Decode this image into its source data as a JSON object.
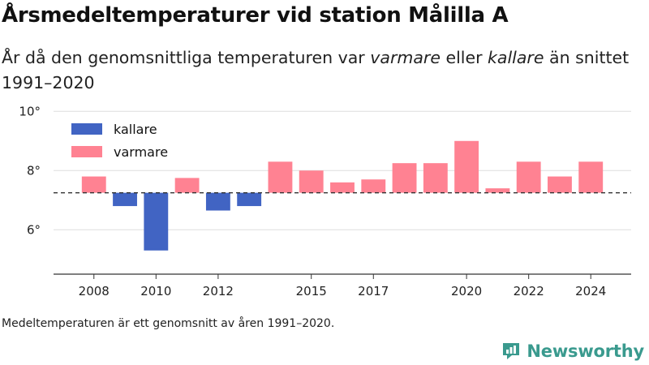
{
  "header": {
    "title": "Årsmedeltemperaturer vid station Målilla A",
    "subtitle_parts": [
      "År då den genomsnittliga temperaturen var ",
      "varmare",
      " eller ",
      "kallare",
      " än snittet 1991–2020"
    ]
  },
  "caption": "Medeltemperaturen är ett genomsnitt av åren 1991–2020.",
  "brand": {
    "name": "Newsworthy",
    "icon": "newsworthy-logo-icon"
  },
  "colors": {
    "colder": "#4164c3",
    "warmer": "#ff8292",
    "baseline": "#333333",
    "grid": "#dddddd",
    "axis": "#333333",
    "brand": "#3a9a8e"
  },
  "chart_data": {
    "type": "bar",
    "baseline": 7.25,
    "ylim": [
      4.5,
      10.2
    ],
    "y_ticks": [
      6,
      8,
      10
    ],
    "y_tick_labels": [
      "6°",
      "8°",
      "10°"
    ],
    "x_range": [
      2006.7,
      2025.3
    ],
    "x_ticks": [
      2008,
      2010,
      2012,
      2015,
      2017,
      2020,
      2022,
      2024
    ],
    "x_tick_labels": [
      "2008",
      "2010",
      "2012",
      "2015",
      "2017",
      "2020",
      "2022",
      "2024"
    ],
    "legend": [
      {
        "label": "kallare",
        "key": "colder"
      },
      {
        "label": "varmare",
        "key": "warmer"
      }
    ],
    "legend_position": "top-left",
    "grid": true,
    "years": [
      2008,
      2009,
      2010,
      2011,
      2012,
      2013,
      2014,
      2015,
      2016,
      2017,
      2018,
      2019,
      2020,
      2021,
      2022,
      2023,
      2024
    ],
    "values": [
      7.8,
      6.8,
      5.3,
      7.75,
      6.65,
      6.8,
      8.3,
      8.0,
      7.6,
      7.7,
      8.25,
      8.25,
      9.0,
      7.4,
      8.3,
      7.8,
      8.3
    ]
  }
}
